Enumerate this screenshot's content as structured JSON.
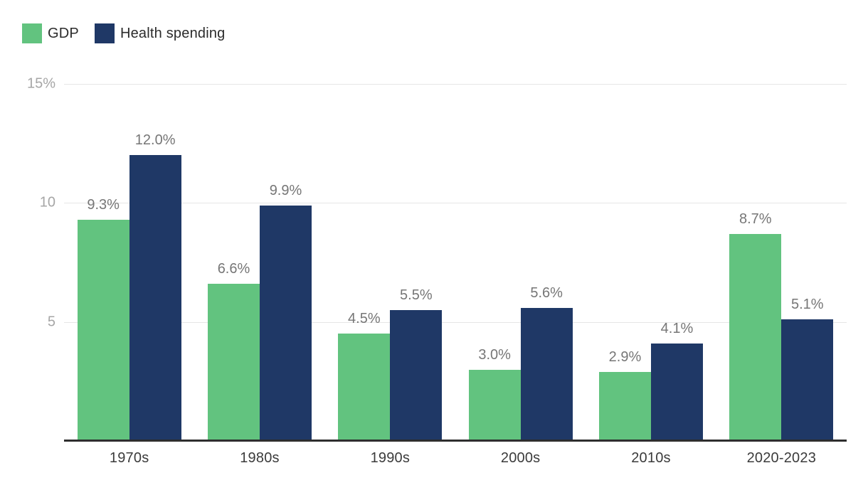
{
  "chart_data": {
    "type": "bar",
    "title": "",
    "categories": [
      "1970s",
      "1980s",
      "1990s",
      "2000s",
      "2010s",
      "2020-2023"
    ],
    "series": [
      {
        "name": "GDP",
        "color": "#62c37f",
        "values": [
          9.3,
          6.6,
          4.5,
          3.0,
          2.9,
          8.7
        ],
        "value_labels": [
          "9.3%",
          "6.6%",
          "4.5%",
          "3.0%",
          "2.9%",
          "8.7%"
        ]
      },
      {
        "name": "Health spending",
        "color": "#1f3866",
        "values": [
          12.0,
          9.9,
          5.5,
          5.6,
          4.1,
          5.1
        ],
        "value_labels": [
          "12.0%",
          "9.9%",
          "5.5%",
          "5.6%",
          "4.1%",
          "5.1%"
        ]
      }
    ],
    "ylim": [
      0,
      15
    ],
    "yticks": [
      {
        "value": 5,
        "label": "5"
      },
      {
        "value": 10,
        "label": "10"
      },
      {
        "value": 15,
        "label": "15%"
      }
    ],
    "xlabel": "",
    "ylabel": "",
    "grid": true,
    "legend_position": "top-left",
    "style": {
      "gridline_color": "#e6e6e6",
      "axis_line_color": "#2e2e2e",
      "y_tick_color": "#a6a6a6",
      "value_label_color": "#767676",
      "x_label_color": "#3b3b3b",
      "legend_text_color": "#2b2b2b",
      "background": "#ffffff"
    }
  }
}
